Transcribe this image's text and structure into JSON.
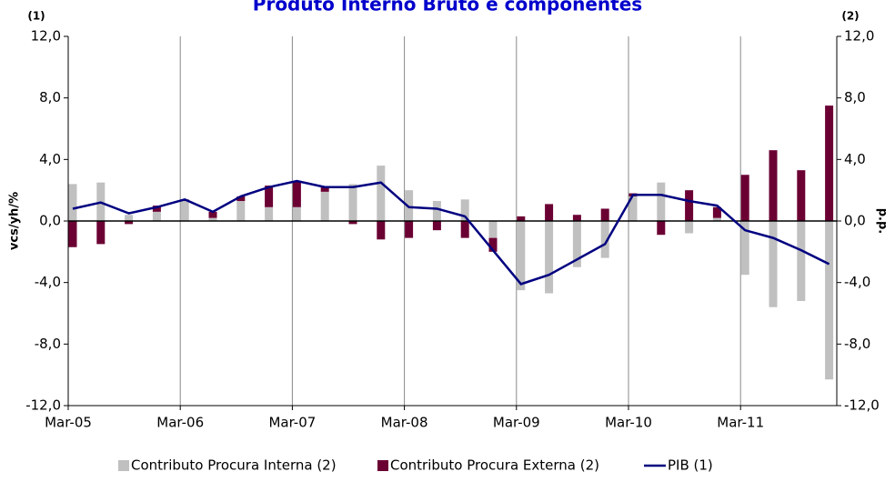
{
  "chart_data": {
    "type": "bar",
    "title": "Produto Interno Bruto e componentes",
    "left_note": "(1)",
    "right_note": "(2)",
    "ylabel": "vcs/yh/%",
    "y2label": "p.p.",
    "categories": [
      "Mar-05",
      null,
      null,
      null,
      "Mar-06",
      null,
      null,
      null,
      "Mar-07",
      null,
      null,
      null,
      "Mar-08",
      null,
      null,
      null,
      "Mar-09",
      null,
      null,
      null,
      "Mar-10",
      null,
      null,
      null,
      "Mar-11",
      null,
      null,
      null
    ],
    "series": [
      {
        "name": "Contributo Procura Interna (2)",
        "color": "#c0c0c0",
        "kind": "bar",
        "axis": "y2",
        "values": [
          2.4,
          2.5,
          0.4,
          0.6,
          1.3,
          0.2,
          1.3,
          0.9,
          0.9,
          1.9,
          2.4,
          3.6,
          2.0,
          1.3,
          1.4,
          -1.1,
          -4.5,
          -4.7,
          -3.0,
          -2.4,
          1.6,
          2.5,
          -0.8,
          0.2,
          -3.5,
          -5.6,
          -5.2,
          -10.3
        ]
      },
      {
        "name": "Contributo Procura Externa (2)",
        "color": "#6b0033",
        "kind": "bar",
        "axis": "y2",
        "values": [
          -1.7,
          -1.5,
          -0.2,
          0.4,
          0.1,
          0.4,
          0.3,
          1.4,
          1.7,
          0.3,
          -0.2,
          -1.2,
          -1.1,
          -0.6,
          -1.1,
          -0.9,
          0.3,
          1.1,
          0.4,
          0.8,
          0.2,
          -0.9,
          2.0,
          0.7,
          3.0,
          4.6,
          3.3,
          7.5
        ]
      },
      {
        "name": "PIB (1)",
        "color": "#000080",
        "kind": "line",
        "values": [
          0.8,
          1.2,
          0.5,
          0.9,
          1.4,
          0.6,
          1.6,
          2.2,
          2.6,
          2.2,
          2.2,
          2.5,
          0.9,
          0.8,
          0.3,
          -1.9,
          -4.1,
          -3.5,
          -2.5,
          -1.5,
          1.7,
          1.7,
          1.3,
          1.0,
          -0.6,
          -1.1,
          -1.9,
          -2.8
        ]
      }
    ],
    "ylim": [
      -12,
      12
    ],
    "yticks": [
      {
        "value": -12,
        "label": "-12,0"
      },
      {
        "value": -8,
        "label": "-8,0"
      },
      {
        "value": -4,
        "label": "-4,0"
      },
      {
        "value": 0,
        "label": "0,0"
      },
      {
        "value": 4,
        "label": "4,0"
      },
      {
        "value": 8,
        "label": "8,0"
      },
      {
        "value": 12,
        "label": "12,0"
      }
    ],
    "y2lim": [
      -12,
      12
    ],
    "y2ticks": [
      {
        "value": -12,
        "label": "-12,0"
      },
      {
        "value": -8,
        "label": "-8,0"
      },
      {
        "value": -4,
        "label": "-4,0"
      },
      {
        "value": 0,
        "label": "0,0"
      },
      {
        "value": 4,
        "label": "4,0"
      },
      {
        "value": 8,
        "label": "8,0"
      },
      {
        "value": 12,
        "label": "12,0"
      }
    ],
    "legend": "bottom"
  }
}
